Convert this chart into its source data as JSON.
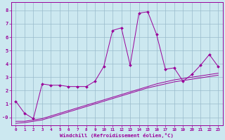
{
  "xlabel": "Windchill (Refroidissement éolien,°C)",
  "x_values": [
    0,
    1,
    2,
    3,
    4,
    5,
    6,
    7,
    8,
    9,
    10,
    11,
    12,
    13,
    14,
    15,
    16,
    17,
    18,
    19,
    20,
    21,
    22,
    23
  ],
  "line1_y": [
    1.2,
    0.3,
    -0.1,
    2.5,
    2.4,
    2.4,
    2.3,
    2.3,
    2.3,
    2.7,
    3.8,
    6.5,
    6.7,
    3.9,
    7.8,
    7.9,
    6.2,
    3.6,
    3.7,
    2.7,
    3.2,
    3.9,
    4.7,
    3.8
  ],
  "line2_y": [
    -0.3,
    -0.3,
    -0.2,
    -0.1,
    0.1,
    0.3,
    0.5,
    0.7,
    0.9,
    1.1,
    1.3,
    1.5,
    1.7,
    1.9,
    2.1,
    2.3,
    2.5,
    2.65,
    2.8,
    2.9,
    3.0,
    3.1,
    3.2,
    3.3
  ],
  "line3_y": [
    -0.45,
    -0.4,
    -0.3,
    -0.2,
    0.0,
    0.2,
    0.4,
    0.6,
    0.8,
    1.0,
    1.2,
    1.4,
    1.6,
    1.8,
    2.0,
    2.2,
    2.35,
    2.5,
    2.65,
    2.75,
    2.85,
    2.95,
    3.05,
    3.15
  ],
  "line_color": "#990099",
  "bg_color": "#cce8f0",
  "grid_color": "#99bbcc",
  "ylim": [
    -0.6,
    8.6
  ],
  "xlim": [
    -0.5,
    23.5
  ],
  "yticks": [
    0,
    1,
    2,
    3,
    4,
    5,
    6,
    7,
    8
  ],
  "xticks": [
    0,
    1,
    2,
    3,
    4,
    5,
    6,
    7,
    8,
    9,
    10,
    11,
    12,
    13,
    14,
    15,
    16,
    17,
    18,
    19,
    20,
    21,
    22,
    23
  ]
}
